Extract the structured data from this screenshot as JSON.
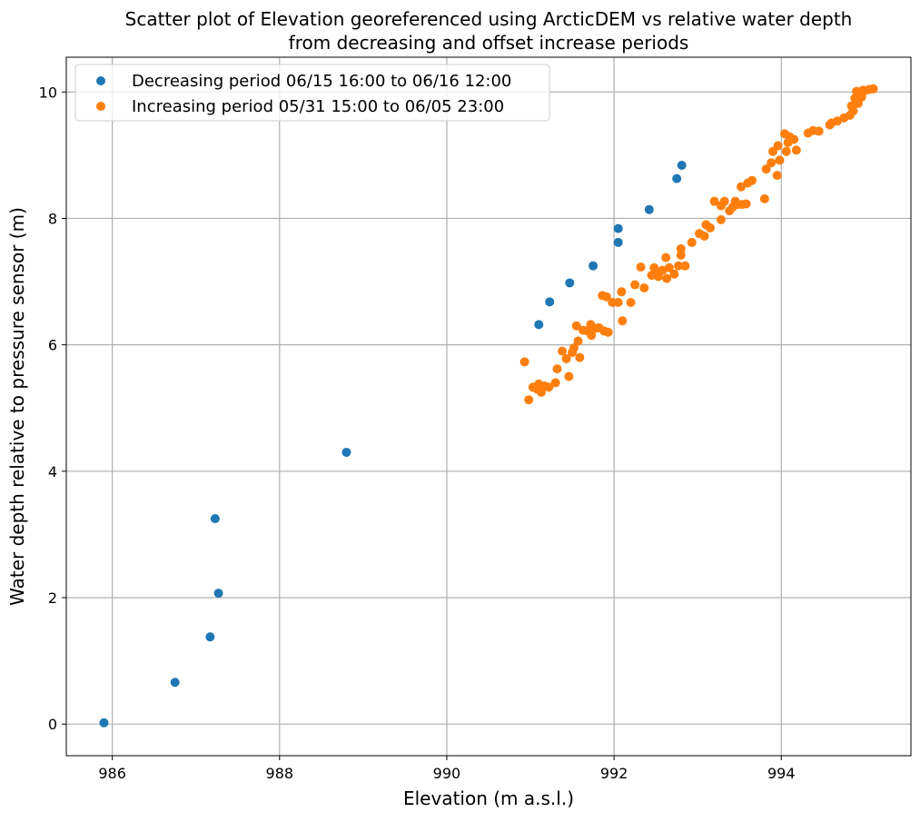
{
  "chart_data": {
    "type": "scatter",
    "title_lines": [
      "Scatter plot of Elevation georeferenced using ArcticDEM vs relative water depth",
      "from decreasing and offset increase periods"
    ],
    "xlabel": "Elevation (m a.s.l.)",
    "ylabel": "Water depth relative to pressure sensor (m)",
    "xlim": [
      985.45,
      995.55
    ],
    "ylim": [
      -0.5,
      10.55
    ],
    "xticks": [
      986,
      988,
      990,
      992,
      994
    ],
    "yticks": [
      0,
      2,
      4,
      6,
      8,
      10
    ],
    "grid": true,
    "legend_position": "top-left",
    "series": [
      {
        "name": "Decreasing period 06/15 16:00 to 06/16 12:00",
        "color": "#1f77b4",
        "points": [
          [
            985.9,
            0.02
          ],
          [
            986.75,
            0.66
          ],
          [
            987.17,
            1.38
          ],
          [
            987.27,
            2.07
          ],
          [
            987.23,
            3.25
          ],
          [
            988.8,
            4.3
          ],
          [
            991.1,
            6.32
          ],
          [
            991.23,
            6.68
          ],
          [
            991.47,
            6.98
          ],
          [
            991.75,
            7.25
          ],
          [
            992.05,
            7.62
          ],
          [
            992.05,
            7.84
          ],
          [
            992.42,
            8.14
          ],
          [
            992.75,
            8.63
          ],
          [
            992.81,
            8.84
          ]
        ]
      },
      {
        "name": "Increasing period 05/31 15:00 to 06/05 23:00",
        "color": "#ff7f0e",
        "points": [
          [
            990.93,
            5.73
          ],
          [
            990.98,
            5.13
          ],
          [
            991.03,
            5.33
          ],
          [
            991.08,
            5.3
          ],
          [
            991.1,
            5.38
          ],
          [
            991.13,
            5.25
          ],
          [
            991.17,
            5.35
          ],
          [
            991.22,
            5.33
          ],
          [
            991.3,
            5.4
          ],
          [
            991.32,
            5.62
          ],
          [
            991.38,
            5.9
          ],
          [
            991.43,
            5.78
          ],
          [
            991.46,
            5.5
          ],
          [
            991.5,
            5.88
          ],
          [
            991.52,
            5.95
          ],
          [
            991.55,
            6.3
          ],
          [
            991.57,
            6.06
          ],
          [
            991.59,
            5.8
          ],
          [
            991.63,
            6.23
          ],
          [
            991.68,
            6.22
          ],
          [
            991.72,
            6.32
          ],
          [
            991.73,
            6.15
          ],
          [
            991.78,
            6.26
          ],
          [
            991.82,
            6.27
          ],
          [
            991.86,
            6.78
          ],
          [
            991.88,
            6.22
          ],
          [
            991.91,
            6.76
          ],
          [
            991.93,
            6.2
          ],
          [
            991.98,
            6.67
          ],
          [
            992.05,
            6.67
          ],
          [
            992.09,
            6.84
          ],
          [
            992.1,
            6.38
          ],
          [
            992.2,
            6.67
          ],
          [
            992.25,
            6.95
          ],
          [
            992.32,
            7.23
          ],
          [
            992.36,
            6.9
          ],
          [
            992.45,
            7.1
          ],
          [
            992.48,
            7.22
          ],
          [
            992.5,
            7.15
          ],
          [
            992.53,
            7.08
          ],
          [
            992.58,
            7.18
          ],
          [
            992.62,
            7.38
          ],
          [
            992.63,
            7.05
          ],
          [
            992.66,
            7.22
          ],
          [
            992.72,
            7.12
          ],
          [
            992.77,
            7.25
          ],
          [
            992.8,
            7.42
          ],
          [
            992.8,
            7.52
          ],
          [
            992.85,
            7.25
          ],
          [
            992.93,
            7.62
          ],
          [
            993.02,
            7.76
          ],
          [
            993.08,
            7.72
          ],
          [
            993.1,
            7.9
          ],
          [
            993.15,
            7.85
          ],
          [
            993.2,
            8.27
          ],
          [
            993.28,
            8.2
          ],
          [
            993.28,
            7.98
          ],
          [
            993.32,
            8.27
          ],
          [
            993.38,
            8.12
          ],
          [
            993.42,
            8.18
          ],
          [
            993.45,
            8.27
          ],
          [
            993.48,
            8.22
          ],
          [
            993.52,
            8.5
          ],
          [
            993.53,
            8.22
          ],
          [
            993.58,
            8.23
          ],
          [
            993.6,
            8.56
          ],
          [
            993.65,
            8.6
          ],
          [
            993.8,
            8.31
          ],
          [
            993.82,
            8.78
          ],
          [
            993.88,
            8.88
          ],
          [
            993.9,
            9.06
          ],
          [
            993.95,
            8.68
          ],
          [
            993.96,
            9.15
          ],
          [
            993.98,
            8.92
          ],
          [
            994.04,
            9.34
          ],
          [
            994.06,
            9.06
          ],
          [
            994.08,
            9.2
          ],
          [
            994.1,
            9.29
          ],
          [
            994.15,
            9.25
          ],
          [
            994.18,
            9.08
          ],
          [
            994.32,
            9.35
          ],
          [
            994.38,
            9.39
          ],
          [
            994.45,
            9.38
          ],
          [
            994.58,
            9.48
          ],
          [
            994.6,
            9.51
          ],
          [
            994.67,
            9.54
          ],
          [
            994.75,
            9.59
          ],
          [
            994.82,
            9.63
          ],
          [
            994.84,
            9.78
          ],
          [
            994.86,
            9.7
          ],
          [
            994.88,
            9.9
          ],
          [
            994.9,
            10.01
          ],
          [
            994.92,
            9.82
          ],
          [
            994.94,
            10.0
          ],
          [
            994.96,
            9.92
          ],
          [
            994.98,
            10.03
          ],
          [
            995.0,
            10.02
          ],
          [
            995.05,
            10.04
          ],
          [
            995.1,
            10.05
          ]
        ]
      }
    ]
  }
}
